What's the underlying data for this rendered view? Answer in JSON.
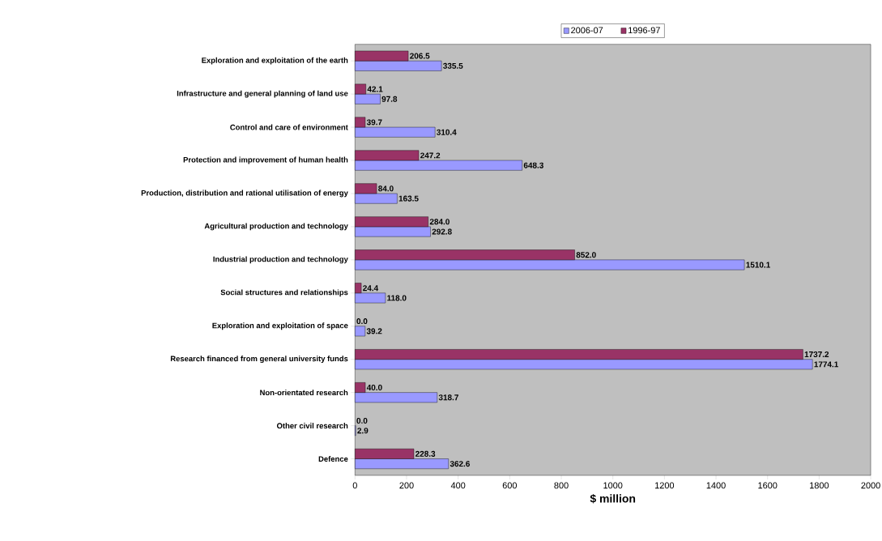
{
  "chart_data": {
    "type": "bar",
    "orientation": "horizontal",
    "xlabel": "$ million",
    "categories": [
      "Exploration and exploitation of the earth",
      "Infrastructure and general planning of land use",
      "Control and care of environment",
      "Protection and improvement of human health",
      "Production, distribution and rational utilisation of energy",
      "Agricultural production and technology",
      "Industrial production and technology",
      "Social structures and relationships",
      "Exploration and exploitation of space",
      "Research financed from general university funds",
      "Non-orientated research",
      "Other civil research",
      "Defence"
    ],
    "series": [
      {
        "name": "2006-07",
        "color": "#9999ff",
        "values": [
          335.5,
          97.8,
          310.4,
          648.3,
          163.5,
          292.8,
          1510.1,
          118.0,
          39.2,
          1774.1,
          318.7,
          2.9,
          362.6
        ],
        "value_labels": [
          "335.5",
          "97.8",
          "310.4",
          "648.3",
          "163.5",
          "292.8",
          "1510.1",
          "118.0",
          "39.2",
          "1774.1",
          "318.7",
          "2.9",
          "362.6"
        ]
      },
      {
        "name": "1996-97",
        "color": "#993366",
        "values": [
          206.5,
          42.1,
          39.7,
          247.2,
          84.0,
          284.0,
          852.0,
          24.4,
          0.0,
          1737.2,
          40.0,
          0.0,
          228.3
        ],
        "value_labels": [
          "206.5",
          "42.1",
          "39.7",
          "247.2",
          "84.0",
          "284.0",
          "852.0",
          "24.4",
          "0.0",
          "1737.2",
          "40.0",
          "0.0",
          "228.3"
        ]
      }
    ],
    "xlim": [
      0,
      2000
    ],
    "xticks": [
      0,
      200,
      400,
      600,
      800,
      1000,
      1200,
      1400,
      1600,
      1800,
      2000
    ],
    "legend": "top"
  }
}
